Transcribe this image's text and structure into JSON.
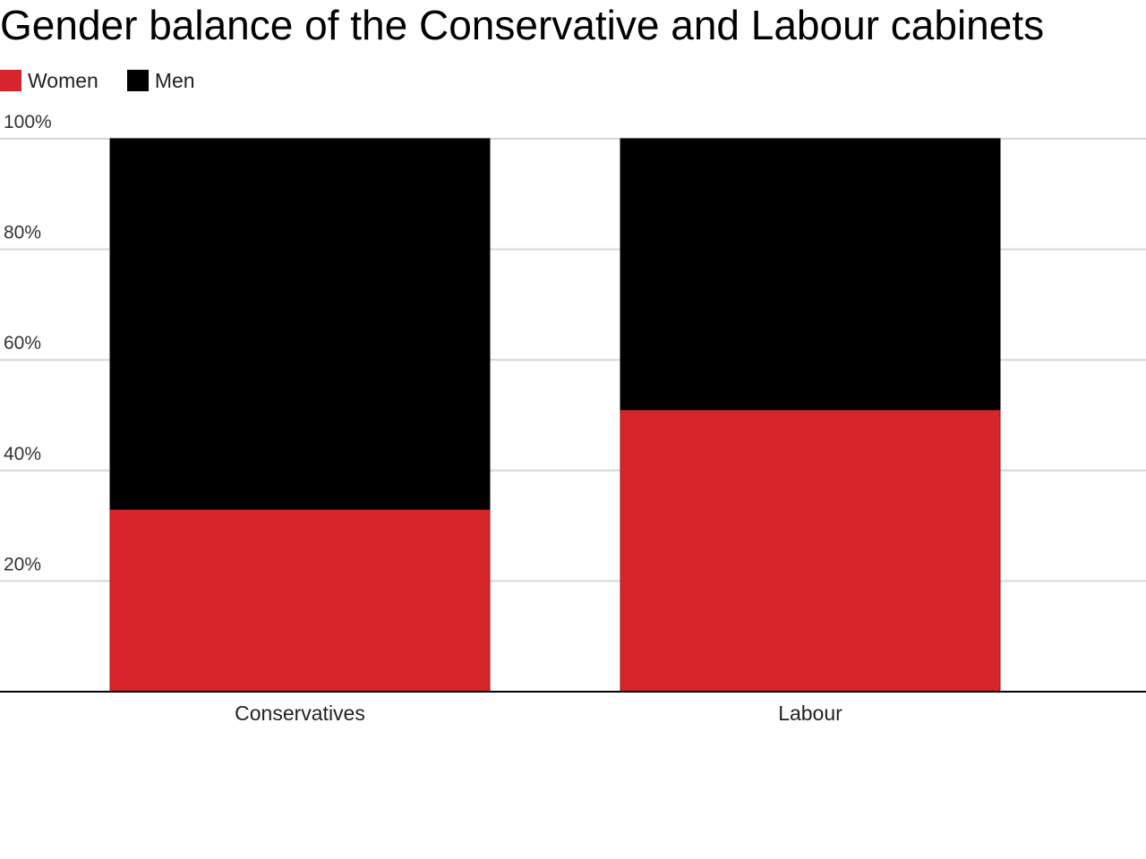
{
  "chart_data": {
    "type": "bar",
    "stacked": true,
    "title": "Gender balance of the Conservative and Labour cabinets",
    "categories": [
      "Conservatives",
      "Labour"
    ],
    "series": [
      {
        "name": "Women",
        "color": "#d7262b",
        "values": [
          33,
          51
        ]
      },
      {
        "name": "Men",
        "color": "#000000",
        "values": [
          67,
          49
        ]
      }
    ],
    "yticks": [
      {
        "value": 20,
        "label": "20%"
      },
      {
        "value": 40,
        "label": "40%"
      },
      {
        "value": 60,
        "label": "60%"
      },
      {
        "value": 80,
        "label": "80%"
      },
      {
        "value": 100,
        "label": "100%"
      }
    ],
    "ylim": [
      0,
      100
    ],
    "grid": true,
    "legend_position": "top-left",
    "xlabel": "",
    "ylabel": ""
  }
}
